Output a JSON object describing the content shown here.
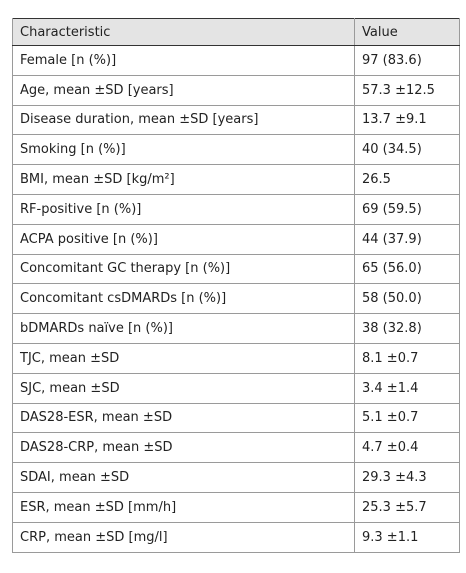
{
  "table": {
    "header": [
      "Characteristic",
      "Value"
    ],
    "rows": [
      [
        "Female [n (%)]",
        "97 (83.6)"
      ],
      [
        "Age, mean ±SD [years]",
        "57.3 ±12.5"
      ],
      [
        "Disease duration, mean ±SD [years]",
        "13.7 ±9.1"
      ],
      [
        "Smoking [n (%)]",
        "40 (34.5)"
      ],
      [
        "BMI, mean ±SD [kg/m²]",
        "26.5"
      ],
      [
        "RF-positive [n (%)]",
        "69 (59.5)"
      ],
      [
        "ACPA positive [n (%)]",
        "44 (37.9)"
      ],
      [
        "Concomitant GC therapy [n (%)]",
        "65 (56.0)"
      ],
      [
        "Concomitant csDMARDs [n (%)]",
        "58 (50.0)"
      ],
      [
        "bDMARDs naïve [n (%)]",
        "38 (32.8)"
      ],
      [
        "TJC, mean ±SD",
        "8.1 ±0.7"
      ],
      [
        "SJC, mean ±SD",
        "3.4 ±1.4"
      ],
      [
        "DAS28-ESR, mean ±SD",
        "5.1 ±0.7"
      ],
      [
        "DAS28-CRP, mean ±SD",
        "4.7 ±0.4"
      ],
      [
        "SDAI, mean ±SD",
        "29.3 ±4.3"
      ],
      [
        "ESR, mean ±SD [mm/h]",
        "25.3 ±5.7"
      ],
      [
        "CRP, mean ±SD [mg/l]",
        "9.3 ±1.1"
      ]
    ]
  }
}
